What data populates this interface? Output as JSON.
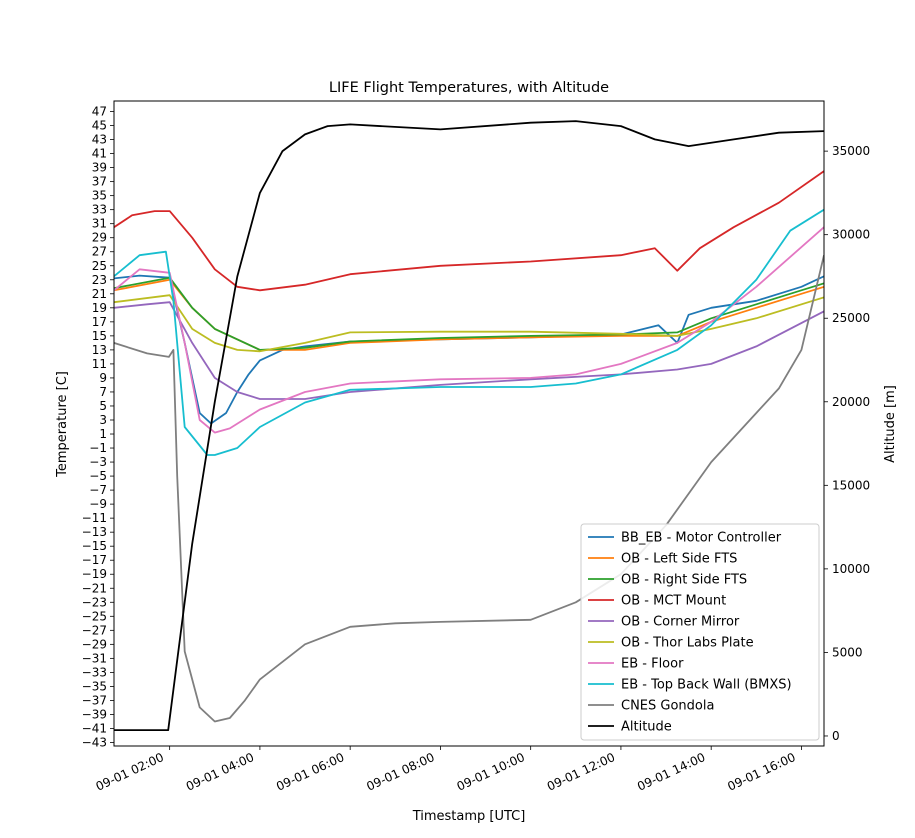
{
  "chart_data": {
    "type": "line",
    "title": "LIFE Flight Temperatures, with Altitude",
    "xlabel": "Timestamp [UTC]",
    "ylabel": "Temperature [C]",
    "y2label": "Altitude [m]",
    "xlim": [
      "09-01 00:46",
      "09-01 16:30"
    ],
    "ylim": [
      -43.5,
      48.5
    ],
    "y2lim": [
      -600,
      38000
    ],
    "x_ticks": [
      {
        "t": "09-01 02:00",
        "label": "09-01 02:00"
      },
      {
        "t": "09-01 04:00",
        "label": "09-01 04:00"
      },
      {
        "t": "09-01 06:00",
        "label": "09-01 06:00"
      },
      {
        "t": "09-01 08:00",
        "label": "09-01 08:00"
      },
      {
        "t": "09-01 10:00",
        "label": "09-01 10:00"
      },
      {
        "t": "09-01 12:00",
        "label": "09-01 12:00"
      },
      {
        "t": "09-01 14:00",
        "label": "09-01 14:00"
      },
      {
        "t": "09-01 16:00",
        "label": "09-01 16:00"
      }
    ],
    "y_ticks": [
      47,
      45,
      43,
      41,
      39,
      37,
      35,
      33,
      31,
      29,
      27,
      25,
      23,
      21,
      19,
      17,
      15,
      13,
      11,
      9,
      7,
      5,
      3,
      1,
      -1,
      -3,
      -5,
      -7,
      -9,
      -11,
      -13,
      -15,
      -17,
      -19,
      -21,
      -23,
      -25,
      -27,
      -29,
      -31,
      -33,
      -35,
      -37,
      -39,
      -41,
      -43
    ],
    "y_tick_labels": [
      "47",
      "45",
      "43",
      "41",
      "39",
      "37",
      "35",
      "33",
      "31",
      "29",
      "27",
      "25",
      "23",
      "21",
      "19",
      "17",
      "15",
      "13",
      "11",
      "9",
      "7",
      "5",
      "3",
      "1",
      "−1",
      "−3",
      "−5",
      "−7",
      "−9",
      "−11",
      "−13",
      "−15",
      "−17",
      "−19",
      "−21",
      "−23",
      "−25",
      "−27",
      "−29",
      "−31",
      "−33",
      "−35",
      "−37",
      "−39",
      "−41",
      "−43"
    ],
    "y2_ticks": [
      0,
      5000,
      10000,
      15000,
      20000,
      25000,
      30000,
      35000
    ],
    "y2_tick_labels": [
      "0",
      "5000",
      "10000",
      "15000",
      "20000",
      "25000",
      "30000",
      "35000"
    ],
    "grid": false,
    "legend": "bottom-right",
    "series": [
      {
        "name": "BB_EB - Motor Controller",
        "color": "#1f77b4",
        "axis": "left",
        "x": [
          "09-01 00:46",
          "09-01 01:20",
          "09-01 02:00",
          "09-01 02:20",
          "09-01 02:40",
          "09-01 02:55",
          "09-01 03:15",
          "09-01 03:30",
          "09-01 03:45",
          "09-01 04:00",
          "09-01 04:30",
          "09-01 05:00",
          "09-01 06:00",
          "09-01 08:00",
          "09-01 10:00",
          "09-01 12:00",
          "09-01 12:50",
          "09-01 13:15",
          "09-01 13:30",
          "09-01 14:00",
          "09-01 15:00",
          "09-01 16:00",
          "09-01 16:30"
        ],
        "y": [
          23.2,
          23.6,
          23.3,
          14.0,
          4.0,
          2.5,
          4.0,
          7.0,
          9.5,
          11.5,
          13.0,
          13.5,
          14.2,
          14.5,
          14.8,
          15.2,
          16.5,
          14.0,
          18.0,
          19.0,
          20.0,
          22.0,
          23.5
        ]
      },
      {
        "name": "OB - Left Side FTS",
        "color": "#ff7f0e",
        "axis": "left",
        "x": [
          "09-01 00:46",
          "09-01 02:00",
          "09-01 02:30",
          "09-01 03:00",
          "09-01 04:00",
          "09-01 05:00",
          "09-01 06:00",
          "09-01 08:00",
          "09-01 10:00",
          "09-01 12:00",
          "09-01 13:15",
          "09-01 14:00",
          "09-01 15:00",
          "09-01 16:00",
          "09-01 16:30"
        ],
        "y": [
          21.5,
          23.0,
          19.0,
          16.0,
          13.0,
          13.0,
          14.0,
          14.5,
          14.8,
          15.0,
          15.0,
          17.0,
          19.0,
          21.0,
          22.0
        ]
      },
      {
        "name": "OB - Right Side FTS",
        "color": "#2ca02c",
        "axis": "left",
        "x": [
          "09-01 00:46",
          "09-01 02:00",
          "09-01 02:30",
          "09-01 03:00",
          "09-01 04:00",
          "09-01 05:00",
          "09-01 06:00",
          "09-01 08:00",
          "09-01 10:00",
          "09-01 12:00",
          "09-01 13:15",
          "09-01 14:00",
          "09-01 15:00",
          "09-01 16:00",
          "09-01 16:30"
        ],
        "y": [
          21.8,
          23.3,
          19.0,
          16.0,
          13.0,
          13.3,
          14.2,
          14.7,
          15.0,
          15.2,
          15.5,
          17.5,
          19.5,
          21.5,
          22.5
        ]
      },
      {
        "name": "OB - MCT Mount",
        "color": "#d62728",
        "axis": "left",
        "x": [
          "09-01 00:46",
          "09-01 01:10",
          "09-01 01:40",
          "09-01 02:00",
          "09-01 02:30",
          "09-01 03:00",
          "09-01 03:30",
          "09-01 04:00",
          "09-01 05:00",
          "09-01 06:00",
          "09-01 08:00",
          "09-01 10:00",
          "09-01 12:00",
          "09-01 12:45",
          "09-01 13:15",
          "09-01 13:45",
          "09-01 14:30",
          "09-01 15:30",
          "09-01 16:30"
        ],
        "y": [
          30.5,
          32.2,
          32.8,
          32.8,
          29.0,
          24.5,
          22.0,
          21.5,
          22.3,
          23.8,
          25.0,
          25.6,
          26.5,
          27.5,
          24.3,
          27.5,
          30.5,
          34.0,
          38.5
        ]
      },
      {
        "name": "OB - Corner Mirror",
        "color": "#9467bd",
        "axis": "left",
        "x": [
          "09-01 00:46",
          "09-01 01:30",
          "09-01 02:00",
          "09-01 02:30",
          "09-01 03:00",
          "09-01 03:30",
          "09-01 04:00",
          "09-01 05:00",
          "09-01 06:00",
          "09-01 08:00",
          "09-01 10:00",
          "09-01 12:00",
          "09-01 13:15",
          "09-01 14:00",
          "09-01 15:00",
          "09-01 16:30"
        ],
        "y": [
          19.0,
          19.5,
          19.8,
          14.0,
          9.0,
          7.0,
          6.0,
          6.0,
          7.0,
          8.0,
          8.8,
          9.5,
          10.2,
          11.0,
          13.5,
          18.5
        ]
      },
      {
        "name": "OB - Thor Labs Plate",
        "color": "#bcbd22",
        "axis": "left",
        "x": [
          "09-01 00:46",
          "09-01 02:00",
          "09-01 02:30",
          "09-01 03:00",
          "09-01 03:30",
          "09-01 04:00",
          "09-01 05:00",
          "09-01 06:00",
          "09-01 08:00",
          "09-01 10:00",
          "09-01 12:00",
          "09-01 13:15",
          "09-01 14:00",
          "09-01 15:00",
          "09-01 16:30"
        ],
        "y": [
          19.8,
          20.8,
          16.0,
          14.0,
          13.0,
          12.8,
          14.0,
          15.5,
          15.6,
          15.6,
          15.3,
          15.0,
          16.0,
          17.5,
          20.5
        ]
      },
      {
        "name": "EB - Floor",
        "color": "#e377c2",
        "axis": "left",
        "x": [
          "09-01 00:46",
          "09-01 01:20",
          "09-01 02:00",
          "09-01 02:20",
          "09-01 02:40",
          "09-01 03:00",
          "09-01 03:20",
          "09-01 04:00",
          "09-01 05:00",
          "09-01 06:00",
          "09-01 08:00",
          "09-01 10:00",
          "09-01 11:00",
          "09-01 12:00",
          "09-01 13:15",
          "09-01 14:00",
          "09-01 15:00",
          "09-01 16:30"
        ],
        "y": [
          21.5,
          24.5,
          24.0,
          14.0,
          3.0,
          1.2,
          1.8,
          4.5,
          7.0,
          8.2,
          8.8,
          9.0,
          9.5,
          11.0,
          14.0,
          17.0,
          22.0,
          30.5
        ]
      },
      {
        "name": "EB - Top Back Wall (BMXS)",
        "color": "#17becf",
        "axis": "left",
        "x": [
          "09-01 00:46",
          "09-01 01:20",
          "09-01 01:55",
          "09-01 02:05",
          "09-01 02:20",
          "09-01 02:50",
          "09-01 03:00",
          "09-01 03:30",
          "09-01 04:00",
          "09-01 05:00",
          "09-01 06:00",
          "09-01 08:00",
          "09-01 10:00",
          "09-01 11:00",
          "09-01 12:00",
          "09-01 13:15",
          "09-01 14:00",
          "09-01 15:00",
          "09-01 15:45",
          "09-01 16:30"
        ],
        "y": [
          23.5,
          26.5,
          27.0,
          20.0,
          2.0,
          -2.0,
          -2.0,
          -1.0,
          2.0,
          5.5,
          7.3,
          7.7,
          7.7,
          8.2,
          9.5,
          13.0,
          16.5,
          23.0,
          30.0,
          33.0
        ]
      },
      {
        "name": "CNES Gondola",
        "color": "#7f7f7f",
        "axis": "left",
        "x": [
          "09-01 00:46",
          "09-01 01:30",
          "09-01 01:59",
          "09-01 02:05",
          "09-01 02:10",
          "09-01 02:20",
          "09-01 02:40",
          "09-01 03:00",
          "09-01 03:20",
          "09-01 03:40",
          "09-01 04:00",
          "09-01 05:00",
          "09-01 06:00",
          "09-01 07:00",
          "09-01 08:00",
          "09-01 10:00",
          "09-01 11:00",
          "09-01 12:00",
          "09-01 13:00",
          "09-01 14:00",
          "09-01 15:00",
          "09-01 15:30",
          "09-01 16:00",
          "09-01 16:30"
        ],
        "y": [
          14.0,
          12.5,
          12.0,
          13.0,
          -5.0,
          -30.0,
          -38.0,
          -40.0,
          -39.5,
          -37.0,
          -34.0,
          -29.0,
          -26.5,
          -26.0,
          -25.8,
          -25.5,
          -23.0,
          -19.0,
          -12.0,
          -3.0,
          4.0,
          7.5,
          13.0,
          26.5
        ]
      },
      {
        "name": "Altitude",
        "color": "#000000",
        "axis": "right",
        "x": [
          "09-01 00:46",
          "09-01 01:30",
          "09-01 01:58",
          "09-01 02:30",
          "09-01 03:00",
          "09-01 03:30",
          "09-01 04:00",
          "09-01 04:30",
          "09-01 05:00",
          "09-01 05:30",
          "09-01 06:00",
          "09-01 08:00",
          "09-01 10:00",
          "09-01 11:00",
          "09-01 12:00",
          "09-01 12:45",
          "09-01 13:30",
          "09-01 14:30",
          "09-01 15:30",
          "09-01 16:30"
        ],
        "y": [
          350,
          350,
          350,
          11500,
          20000,
          27500,
          32500,
          35000,
          36000,
          36500,
          36600,
          36300,
          36700,
          36800,
          36500,
          35700,
          35300,
          35700,
          36100,
          36200
        ]
      }
    ]
  }
}
